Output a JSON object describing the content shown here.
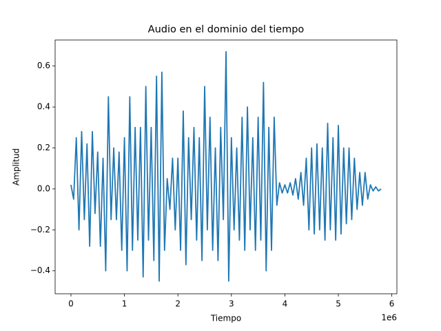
{
  "chart_data": {
    "type": "line",
    "title": "Audio en el dominio del tiempo",
    "xlabel": "Tiempo",
    "ylabel": "Amplitud",
    "x_offset_label": "1e6",
    "xlim": [
      -0.296,
      6.095
    ],
    "xticks": [
      0,
      1,
      2,
      3,
      4,
      5,
      6
    ],
    "ylim": [
      -0.512,
      0.727
    ],
    "yticks": [
      {
        "value": -0.4,
        "label": "−0.4"
      },
      {
        "value": -0.2,
        "label": "−0.2"
      },
      {
        "value": 0,
        "label": "0.0"
      },
      0.2,
      0.4,
      0.6
    ],
    "grid": false,
    "x": [
      0,
      0.05,
      0.1,
      0.15,
      0.2,
      0.25,
      0.3,
      0.35,
      0.4,
      0.45,
      0.5,
      0.55,
      0.6,
      0.65,
      0.7,
      0.75,
      0.8,
      0.85,
      0.9,
      0.95,
      1.0,
      1.05,
      1.1,
      1.15,
      1.2,
      1.25,
      1.3,
      1.35,
      1.4,
      1.45,
      1.5,
      1.55,
      1.6,
      1.65,
      1.7,
      1.75,
      1.8,
      1.85,
      1.9,
      1.95,
      2.0,
      2.05,
      2.1,
      2.15,
      2.2,
      2.25,
      2.3,
      2.35,
      2.4,
      2.45,
      2.5,
      2.55,
      2.6,
      2.65,
      2.7,
      2.75,
      2.8,
      2.85,
      2.9,
      2.95,
      3.0,
      3.05,
      3.1,
      3.15,
      3.2,
      3.25,
      3.3,
      3.35,
      3.4,
      3.45,
      3.5,
      3.55,
      3.6,
      3.65,
      3.7,
      3.75,
      3.8,
      3.85,
      3.9,
      3.95,
      4.0,
      4.05,
      4.1,
      4.15,
      4.2,
      4.25,
      4.3,
      4.35,
      4.4,
      4.45,
      4.5,
      4.55,
      4.6,
      4.65,
      4.7,
      4.75,
      4.8,
      4.85,
      4.9,
      4.95,
      5.0,
      5.05,
      5.1,
      5.15,
      5.2,
      5.25,
      5.3,
      5.35,
      5.4,
      5.45,
      5.5,
      5.55,
      5.6,
      5.65,
      5.7,
      5.75,
      5.8
    ],
    "series": [
      {
        "color": "#1f77b4",
        "values": [
          0.02,
          -0.05,
          0.25,
          -0.2,
          0.28,
          -0.15,
          0.22,
          -0.28,
          0.28,
          -0.12,
          0.18,
          -0.28,
          0.15,
          -0.4,
          0.45,
          -0.15,
          0.2,
          -0.15,
          0.18,
          -0.3,
          0.25,
          -0.4,
          0.45,
          -0.3,
          0.3,
          -0.25,
          0.3,
          -0.43,
          0.5,
          -0.25,
          0.3,
          -0.35,
          0.55,
          -0.45,
          0.57,
          -0.3,
          0.05,
          -0.1,
          0.15,
          -0.2,
          0.15,
          -0.3,
          0.38,
          -0.37,
          0.25,
          -0.15,
          0.3,
          -0.25,
          0.25,
          -0.35,
          0.5,
          -0.2,
          0.35,
          -0.3,
          0.2,
          -0.35,
          0.3,
          -0.15,
          0.67,
          -0.45,
          0.25,
          -0.2,
          0.2,
          -0.25,
          0.35,
          -0.3,
          0.4,
          -0.2,
          0.25,
          -0.3,
          0.35,
          -0.25,
          0.52,
          -0.4,
          0.3,
          -0.3,
          0.35,
          -0.08,
          0.03,
          -0.02,
          0.02,
          -0.02,
          0.03,
          -0.03,
          0.05,
          -0.05,
          0.08,
          -0.08,
          0.15,
          -0.2,
          0.2,
          -0.22,
          0.22,
          -0.2,
          0.2,
          -0.25,
          0.32,
          -0.2,
          0.25,
          -0.25,
          0.31,
          -0.22,
          0.2,
          -0.17,
          0.2,
          -0.15,
          0.15,
          -0.1,
          0.08,
          -0.08,
          0.08,
          -0.05,
          0.02,
          -0.01,
          0.01,
          -0.01,
          0.0
        ]
      }
    ]
  }
}
